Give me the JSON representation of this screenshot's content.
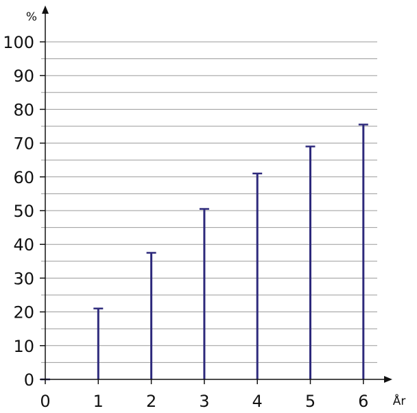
{
  "chart_data": {
    "type": "bar",
    "title": "",
    "xlabel": "År",
    "ylabel": "%",
    "x_ticks": [
      "0",
      "1",
      "2",
      "3",
      "4",
      "5",
      "6"
    ],
    "y_ticks": [
      "0",
      "10",
      "20",
      "30",
      "40",
      "50",
      "60",
      "70",
      "80",
      "90",
      "100"
    ],
    "xlim": [
      0,
      6
    ],
    "ylim": [
      0,
      100
    ],
    "grid": true,
    "grid_minor_step": 5,
    "legend": "none",
    "x": [
      0,
      1,
      2,
      3,
      4,
      5,
      6
    ],
    "values": [
      0,
      21,
      37.5,
      50.5,
      61,
      69,
      75.5
    ],
    "bar_style": "thin vertical line with short cap",
    "colors": {
      "bar": "#2e2a7c",
      "grid": "#9a9a9a",
      "axis": "#111111"
    }
  }
}
